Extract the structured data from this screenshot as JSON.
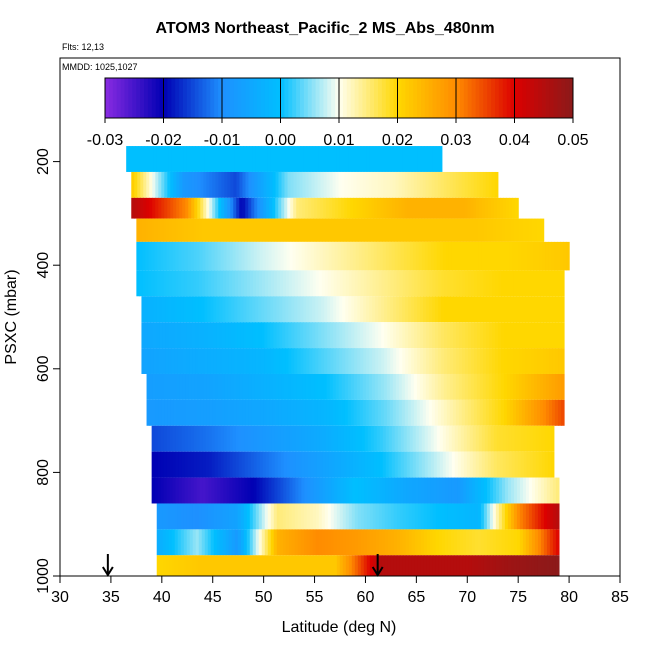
{
  "chart_data": {
    "type": "heatmap",
    "title": "ATOM3 Northeast_Pacific_2 MS_Abs_480nm",
    "flights_label": "Flts: 12,13",
    "dates_label": "MMDD: 1025,1027",
    "xlabel": "Latitude (deg N)",
    "ylabel": "PSXC (mbar)",
    "xlim": [
      30,
      85
    ],
    "ylim": [
      1000,
      0
    ],
    "xticks": [
      30,
      35,
      40,
      45,
      50,
      55,
      60,
      65,
      70,
      75,
      80,
      85
    ],
    "yticks": [
      200,
      400,
      600,
      800,
      1000
    ],
    "colorbar": {
      "range": [
        -0.03,
        0.05
      ],
      "ticks": [
        -0.03,
        -0.02,
        -0.01,
        0.0,
        0.01,
        0.02,
        0.03,
        0.04,
        0.05
      ],
      "tick_labels": [
        "-0.03",
        "-0.02",
        "-0.01",
        "0.00",
        "0.01",
        "0.02",
        "0.03",
        "0.04",
        "0.05"
      ],
      "colors": [
        "#8A2BE2",
        "#0000B3",
        "#1E90FF",
        "#00BFFF",
        "#FFFFF0",
        "#FFD700",
        "#FF8C00",
        "#DC0000",
        "#8B1A1A"
      ]
    },
    "arrows_latitude": [
      34.7,
      61.2
    ],
    "layers": [
      {
        "p_top": 170,
        "p_bot": 220,
        "lat_min": 36.5,
        "lat_max": 67.5,
        "values": [
          0.0,
          0.0
        ]
      },
      {
        "p_top": 220,
        "p_bot": 270,
        "lat_min": 37.0,
        "lat_max": 73.0,
        "values": [
          0.022,
          -0.008,
          -0.015,
          0.005,
          0.01,
          0.012,
          0.016,
          0.02
        ]
      },
      {
        "p_top": 270,
        "p_bot": 310,
        "lat_min": 37.0,
        "lat_max": 75.0,
        "values": [
          0.045,
          0.03,
          -0.02,
          0.015,
          0.02,
          0.025,
          0.025,
          0.02
        ]
      },
      {
        "p_top": 310,
        "p_bot": 355,
        "lat_min": 37.5,
        "lat_max": 77.5,
        "values": [
          0.025,
          0.022,
          0.022,
          0.022,
          0.022,
          0.022,
          0.02
        ]
      },
      {
        "p_top": 355,
        "p_bot": 410,
        "lat_min": 37.5,
        "lat_max": 80.0,
        "values": [
          0.0,
          0.003,
          0.008,
          0.012,
          0.016,
          0.02,
          0.02,
          0.022
        ]
      },
      {
        "p_top": 410,
        "p_bot": 460,
        "lat_min": 37.5,
        "lat_max": 79.5,
        "values": [
          0.0,
          0.002,
          0.006,
          0.01,
          0.014,
          0.018,
          0.02,
          0.02
        ]
      },
      {
        "p_top": 460,
        "p_bot": 510,
        "lat_min": 38.0,
        "lat_max": 79.5,
        "values": [
          -0.003,
          0.0,
          0.004,
          0.008,
          0.014,
          0.02,
          0.02,
          0.02
        ]
      },
      {
        "p_top": 510,
        "p_bot": 560,
        "lat_min": 38.0,
        "lat_max": 79.5,
        "values": [
          -0.005,
          -0.003,
          0.0,
          0.005,
          0.01,
          0.016,
          0.02,
          0.02
        ]
      },
      {
        "p_top": 560,
        "p_bot": 610,
        "lat_min": 38.0,
        "lat_max": 79.5,
        "values": [
          -0.006,
          -0.004,
          -0.002,
          0.003,
          0.008,
          0.015,
          0.02,
          0.022
        ]
      },
      {
        "p_top": 610,
        "p_bot": 660,
        "lat_min": 38.5,
        "lat_max": 79.5,
        "values": [
          -0.007,
          -0.006,
          -0.003,
          0.0,
          0.006,
          0.014,
          0.02,
          0.028
        ]
      },
      {
        "p_top": 660,
        "p_bot": 710,
        "lat_min": 38.5,
        "lat_max": 79.5,
        "values": [
          -0.008,
          -0.007,
          -0.005,
          -0.002,
          0.004,
          0.012,
          0.02,
          0.035
        ]
      },
      {
        "p_top": 710,
        "p_bot": 760,
        "lat_min": 39.0,
        "lat_max": 78.5,
        "values": [
          -0.015,
          -0.012,
          -0.008,
          -0.004,
          0.002,
          0.01,
          0.018,
          0.02
        ]
      },
      {
        "p_top": 760,
        "p_bot": 810,
        "lat_min": 39.0,
        "lat_max": 78.5,
        "values": [
          -0.02,
          -0.018,
          -0.012,
          -0.006,
          0.0,
          0.008,
          0.016,
          0.02
        ]
      },
      {
        "p_top": 810,
        "p_bot": 860,
        "lat_min": 39.0,
        "lat_max": 79.0,
        "values": [
          -0.02,
          -0.025,
          -0.02,
          -0.01,
          0.0,
          -0.005,
          -0.008,
          0.006,
          0.015
        ]
      },
      {
        "p_top": 860,
        "p_bot": 910,
        "lat_min": 39.5,
        "lat_max": 79.0,
        "values": [
          -0.008,
          -0.01,
          -0.006,
          0.015,
          0.012,
          0.005,
          0.002,
          0.0,
          -0.002,
          0.03,
          0.045
        ]
      },
      {
        "p_top": 910,
        "p_bot": 960,
        "lat_min": 39.5,
        "lat_max": 79.0,
        "values": [
          -0.004,
          0.006,
          -0.008,
          0.025,
          0.03,
          0.028,
          0.025,
          0.02,
          0.018,
          0.02,
          0.04
        ]
      },
      {
        "p_top": 960,
        "p_bot": 1000,
        "lat_min": 39.5,
        "lat_max": 79.0,
        "values": [
          0.02,
          0.022,
          0.022,
          0.022,
          0.022,
          0.045,
          0.045,
          0.045,
          0.048,
          0.05
        ]
      }
    ]
  }
}
